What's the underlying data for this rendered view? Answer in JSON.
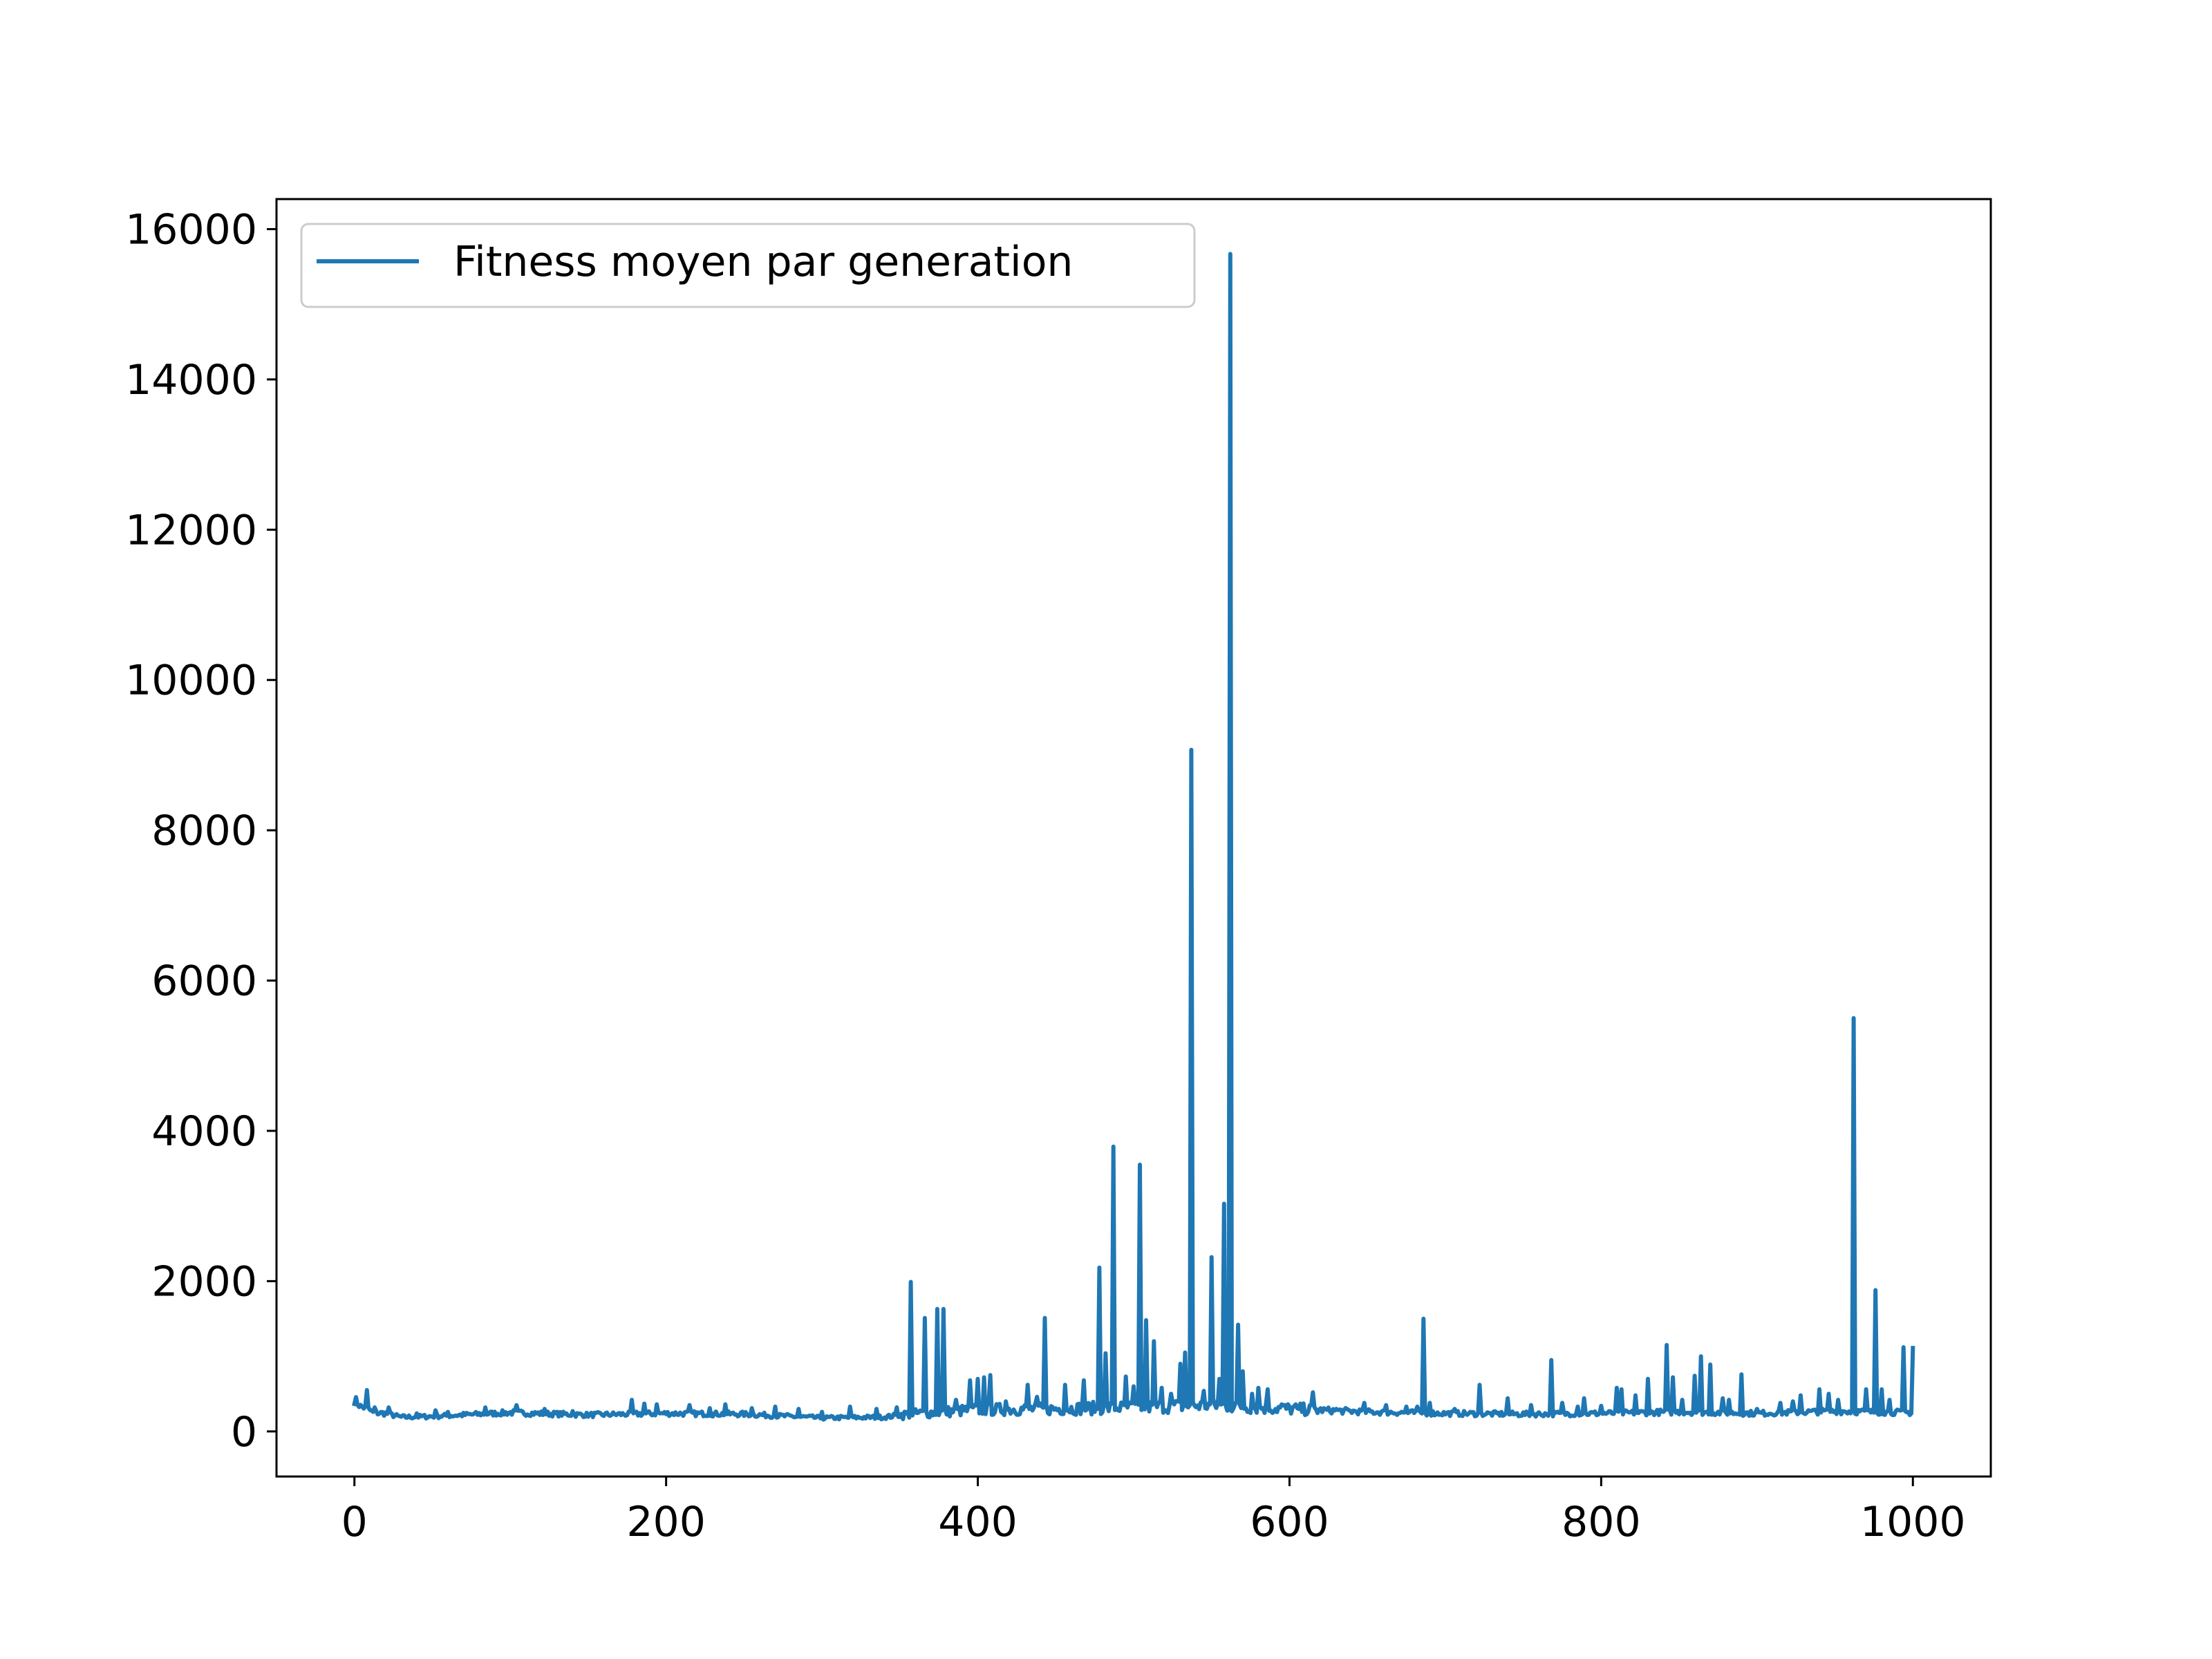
{
  "chart_data": {
    "type": "line",
    "title": "",
    "xlabel": "",
    "ylabel": "",
    "xlim": [
      -50,
      1050
    ],
    "ylim": [
      -600,
      16400
    ],
    "xticks": [
      0,
      200,
      400,
      600,
      800,
      1000
    ],
    "yticks": [
      0,
      2000,
      4000,
      6000,
      8000,
      10000,
      12000,
      14000,
      16000
    ],
    "legend_placement": "upper-left",
    "grid": false,
    "series": [
      {
        "name": "Fitness moyen par generation",
        "color": "#1f77b4",
        "baseline": [
          [
            0,
            430
          ],
          [
            4,
            330
          ],
          [
            8,
            310
          ],
          [
            12,
            250
          ],
          [
            20,
            240
          ],
          [
            30,
            190
          ],
          [
            50,
            200
          ],
          [
            70,
            220
          ],
          [
            100,
            250
          ],
          [
            150,
            220
          ],
          [
            200,
            240
          ],
          [
            250,
            230
          ],
          [
            300,
            180
          ],
          [
            340,
            190
          ],
          [
            355,
            230
          ],
          [
            400,
            290
          ],
          [
            450,
            300
          ],
          [
            500,
            320
          ],
          [
            550,
            350
          ],
          [
            600,
            300
          ],
          [
            650,
            260
          ],
          [
            700,
            240
          ],
          [
            750,
            230
          ],
          [
            800,
            240
          ],
          [
            850,
            260
          ],
          [
            900,
            240
          ],
          [
            950,
            270
          ],
          [
            1000,
            250
          ]
        ],
        "peaks": [
          [
            8,
            550
          ],
          [
            13,
            320
          ],
          [
            22,
            320
          ],
          [
            40,
            240
          ],
          [
            52,
            280
          ],
          [
            60,
            260
          ],
          [
            84,
            320
          ],
          [
            104,
            350
          ],
          [
            122,
            300
          ],
          [
            140,
            270
          ],
          [
            178,
            420
          ],
          [
            186,
            370
          ],
          [
            194,
            360
          ],
          [
            215,
            350
          ],
          [
            228,
            310
          ],
          [
            238,
            360
          ],
          [
            255,
            310
          ],
          [
            270,
            330
          ],
          [
            285,
            300
          ],
          [
            300,
            260
          ],
          [
            318,
            330
          ],
          [
            335,
            300
          ],
          [
            348,
            320
          ],
          [
            357,
            1990
          ],
          [
            366,
            1510
          ],
          [
            374,
            1630
          ],
          [
            378,
            1630
          ],
          [
            386,
            420
          ],
          [
            395,
            680
          ],
          [
            400,
            700
          ],
          [
            404,
            720
          ],
          [
            408,
            750
          ],
          [
            418,
            400
          ],
          [
            432,
            620
          ],
          [
            438,
            460
          ],
          [
            443,
            1510
          ],
          [
            456,
            620
          ],
          [
            468,
            680
          ],
          [
            478,
            2180
          ],
          [
            482,
            1040
          ],
          [
            487,
            3790
          ],
          [
            495,
            730
          ],
          [
            500,
            600
          ],
          [
            504,
            3550
          ],
          [
            508,
            1480
          ],
          [
            513,
            1200
          ],
          [
            518,
            580
          ],
          [
            524,
            500
          ],
          [
            530,
            900
          ],
          [
            533,
            1050
          ],
          [
            537,
            9070
          ],
          [
            545,
            540
          ],
          [
            550,
            2320
          ],
          [
            555,
            700
          ],
          [
            558,
            3030
          ],
          [
            562,
            15670
          ],
          [
            567,
            1420
          ],
          [
            570,
            800
          ],
          [
            576,
            500
          ],
          [
            580,
            580
          ],
          [
            586,
            560
          ],
          [
            595,
            360
          ],
          [
            606,
            300
          ],
          [
            615,
            520
          ],
          [
            630,
            300
          ],
          [
            648,
            380
          ],
          [
            662,
            350
          ],
          [
            675,
            330
          ],
          [
            682,
            330
          ],
          [
            686,
            1500
          ],
          [
            690,
            380
          ],
          [
            706,
            300
          ],
          [
            722,
            620
          ],
          [
            740,
            440
          ],
          [
            755,
            350
          ],
          [
            768,
            950
          ],
          [
            775,
            380
          ],
          [
            785,
            330
          ],
          [
            789,
            440
          ],
          [
            800,
            340
          ],
          [
            810,
            580
          ],
          [
            813,
            560
          ],
          [
            822,
            480
          ],
          [
            830,
            700
          ],
          [
            842,
            1150
          ],
          [
            846,
            720
          ],
          [
            852,
            420
          ],
          [
            860,
            740
          ],
          [
            864,
            1000
          ],
          [
            870,
            890
          ],
          [
            878,
            440
          ],
          [
            882,
            420
          ],
          [
            890,
            760
          ],
          [
            900,
            300
          ],
          [
            915,
            380
          ],
          [
            923,
            400
          ],
          [
            928,
            480
          ],
          [
            940,
            560
          ],
          [
            946,
            500
          ],
          [
            952,
            420
          ],
          [
            962,
            5500
          ],
          [
            970,
            560
          ],
          [
            976,
            1880
          ],
          [
            980,
            560
          ],
          [
            985,
            420
          ],
          [
            994,
            1120
          ],
          [
            1000,
            1110
          ]
        ]
      }
    ]
  }
}
